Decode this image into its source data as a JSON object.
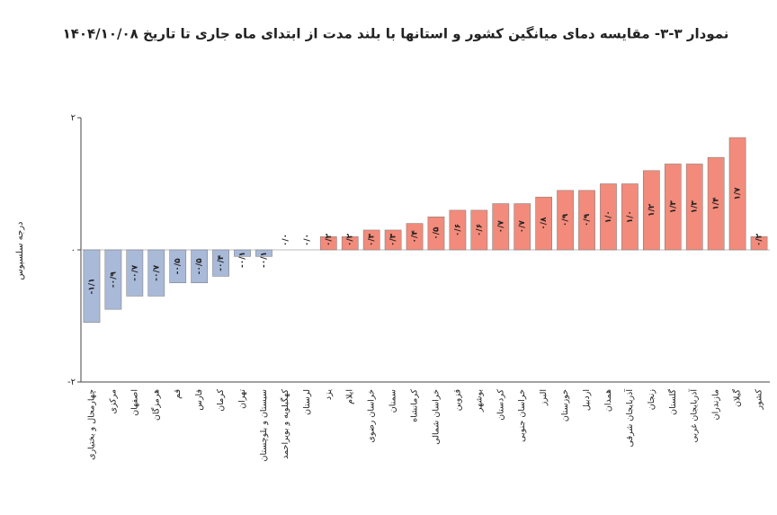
{
  "chart_data": {
    "type": "bar",
    "title": "نمودار ۳-۳- مقایسه دمای میانگین کشور و استانها با بلند مدت از ابتدای ماه جاری تا تاریخ ۱۴۰۴/۱۰/۰۸",
    "y_label": "درجه سلسیوس",
    "categories": [
      "چهارمحال و بختیاری",
      "مرکزی",
      "اصفهان",
      "هرمزگان",
      "قم",
      "فارس",
      "کرمان",
      "تهران",
      "سیستان و بلوچستان",
      "کهگیلویه و بویراحمد",
      "لرستان",
      "یزد",
      "ایلام",
      "خراسان رضوی",
      "سمنان",
      "کرمانشاه",
      "خراسان شمالی",
      "قزوین",
      "بوشهر",
      "کردستان",
      "خراسان جنوبی",
      "البرز",
      "خوزستان",
      "اردبیل",
      "همدان",
      "آذربایجان شرقی",
      "زنجان",
      "گلستان",
      "آذربایجان غربی",
      "مازندران",
      "گیلان",
      "کشور"
    ],
    "values": [
      -1.1,
      -0.9,
      -0.7,
      -0.7,
      -0.5,
      -0.5,
      -0.4,
      -0.1,
      -0.1,
      0.0,
      0.0,
      0.2,
      0.2,
      0.3,
      0.3,
      0.4,
      0.5,
      0.6,
      0.6,
      0.7,
      0.7,
      0.8,
      0.9,
      0.9,
      1.0,
      1.0,
      1.2,
      1.3,
      1.3,
      1.4,
      1.7,
      0.2
    ],
    "value_labels": [
      "-۱/۱",
      "-۰/۹",
      "-۰/۷",
      "-۰/۷",
      "-۰/۵",
      "-۰/۵",
      "-۰/۴",
      "-۰/۱",
      "-۰/۱",
      "۰/۰",
      "۰/۰",
      "۰/۲",
      "۰/۲",
      "۰/۳",
      "۰/۳",
      "۰/۴",
      "۰/۵",
      "۰/۶",
      "۰/۶",
      "۰/۷",
      "۰/۷",
      "۰/۸",
      "۰/۹",
      "۰/۹",
      "۱/۰",
      "۱/۰",
      "۱/۲",
      "۱/۳",
      "۱/۳",
      "۱/۴",
      "۱/۷",
      "۰/۲"
    ],
    "negative_color": "#a9b9d8",
    "positive_color": "#f28b7b",
    "ylim": [
      -2,
      2
    ],
    "yticks": [
      {
        "value": -2,
        "label": "-۲"
      },
      {
        "value": 0,
        "label": "۰"
      },
      {
        "value": 2,
        "label": "۲"
      }
    ],
    "grid": false
  }
}
